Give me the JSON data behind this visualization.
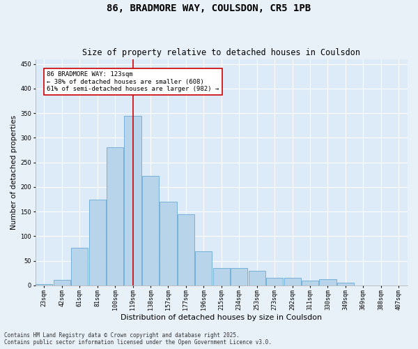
{
  "title": "86, BRADMORE WAY, COULSDON, CR5 1PB",
  "subtitle": "Size of property relative to detached houses in Coulsdon",
  "xlabel": "Distribution of detached houses by size in Coulsdon",
  "ylabel": "Number of detached properties",
  "categories": [
    "23sqm",
    "42sqm",
    "61sqm",
    "81sqm",
    "100sqm",
    "119sqm",
    "138sqm",
    "157sqm",
    "177sqm",
    "196sqm",
    "215sqm",
    "234sqm",
    "253sqm",
    "273sqm",
    "292sqm",
    "311sqm",
    "330sqm",
    "349sqm",
    "369sqm",
    "388sqm",
    "407sqm"
  ],
  "values": [
    2,
    11,
    76,
    175,
    280,
    345,
    222,
    170,
    145,
    70,
    36,
    36,
    30,
    15,
    15,
    10,
    12,
    6,
    0,
    0,
    0
  ],
  "bar_color": "#b8d4ea",
  "bar_edge_color": "#6aaad4",
  "background_color": "#ddeaf7",
  "grid_color": "#ffffff",
  "vline_color": "#cc0000",
  "vline_x": 5,
  "annotation_text": "86 BRADMORE WAY: 123sqm\n← 38% of detached houses are smaller (608)\n61% of semi-detached houses are larger (982) →",
  "annotation_box_facecolor": "#ffffff",
  "annotation_box_edgecolor": "#cc0000",
  "ylim": [
    0,
    460
  ],
  "yticks": [
    0,
    50,
    100,
    150,
    200,
    250,
    300,
    350,
    400,
    450
  ],
  "footer_line1": "Contains HM Land Registry data © Crown copyright and database right 2025.",
  "footer_line2": "Contains public sector information licensed under the Open Government Licence v3.0.",
  "fig_facecolor": "#e8f0f8",
  "title_fontsize": 10,
  "subtitle_fontsize": 8.5,
  "xlabel_fontsize": 8,
  "ylabel_fontsize": 7.5,
  "tick_fontsize": 6,
  "annotation_fontsize": 6.5,
  "footer_fontsize": 5.5
}
